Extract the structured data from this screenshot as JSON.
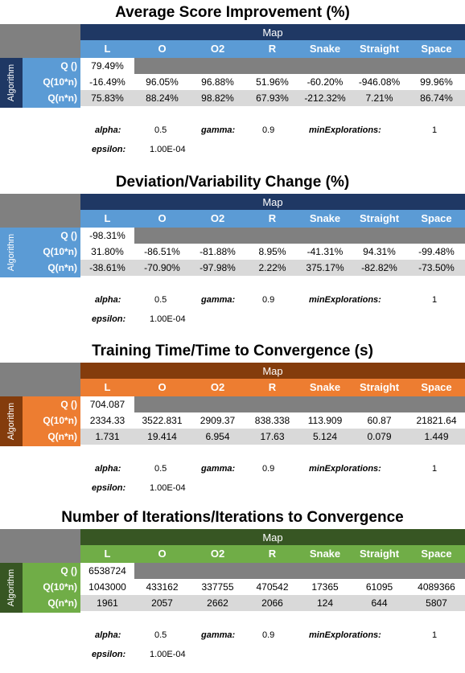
{
  "columns": [
    "L",
    "O",
    "O2",
    "R",
    "Snake",
    "Straight",
    "Space"
  ],
  "map_label": "Map",
  "algorithm_label": "Algorithm",
  "row_labels": [
    "Q ()",
    "Q(10*n)",
    "Q(n*n)"
  ],
  "param_labels": {
    "alpha": "alpha:",
    "gamma": "gamma:",
    "minExplorations": "minExplorations:",
    "epsilon": "epsilon:"
  },
  "param_values": {
    "alpha": "0.5",
    "gamma": "0.9",
    "minExplorations": "1",
    "epsilon": "1.00E-04"
  },
  "tables": [
    {
      "title": "Average Score Improvement (%)",
      "colors": {
        "dark": "#1f3864",
        "mid": "#5b9bd5",
        "alg": "#1f3864"
      },
      "rows": [
        [
          "79.49%"
        ],
        [
          "-16.49%",
          "96.05%",
          "96.88%",
          "51.96%",
          "-60.20%",
          "-946.08%",
          "99.96%"
        ],
        [
          "75.83%",
          "88.24%",
          "98.82%",
          "67.93%",
          "-212.32%",
          "7.21%",
          "86.74%"
        ]
      ]
    },
    {
      "title": "Deviation/Variability Change (%)",
      "colors": {
        "dark": "#1f3864",
        "mid": "#5b9bd5",
        "alg": "#5b9bd5"
      },
      "rows": [
        [
          "-98.31%"
        ],
        [
          "31.80%",
          "-86.51%",
          "-81.88%",
          "8.95%",
          "-41.31%",
          "94.31%",
          "-99.48%"
        ],
        [
          "-38.61%",
          "-70.90%",
          "-97.98%",
          "2.22%",
          "375.17%",
          "-82.82%",
          "-73.50%"
        ]
      ]
    },
    {
      "title": "Training Time/Time to Convergence (s)",
      "colors": {
        "dark": "#843c0c",
        "mid": "#ed7d31",
        "alg": "#843c0c"
      },
      "rows": [
        [
          "704.087"
        ],
        [
          "2334.33",
          "3522.831",
          "2909.37",
          "838.338",
          "113.909",
          "60.87",
          "21821.64"
        ],
        [
          "1.731",
          "19.414",
          "6.954",
          "17.63",
          "5.124",
          "0.079",
          "1.449"
        ]
      ]
    },
    {
      "title": "Number of Iterations/Iterations to Convergence",
      "colors": {
        "dark": "#375623",
        "mid": "#70ad47",
        "alg": "#375623"
      },
      "rows": [
        [
          "6538724"
        ],
        [
          "1043000",
          "433162",
          "337755",
          "470542",
          "17365",
          "61095",
          "4089366"
        ],
        [
          "1961",
          "2057",
          "2662",
          "2066",
          "124",
          "644",
          "5807"
        ]
      ]
    }
  ]
}
